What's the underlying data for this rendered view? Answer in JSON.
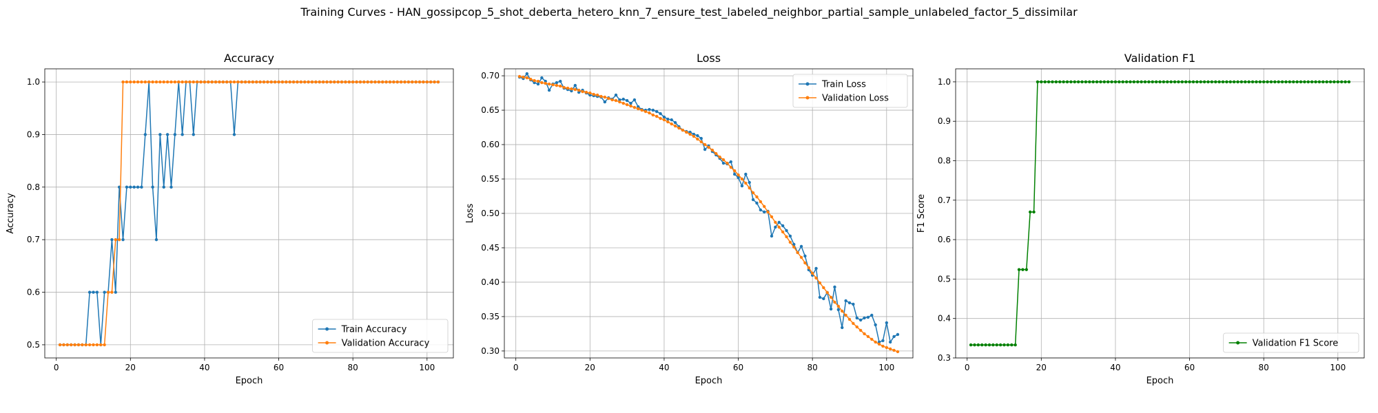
{
  "suptitle": "Training Curves - HAN_gossipcop_5_shot_deberta_hetero_knn_7_ensure_test_labeled_neighbor_partial_sample_unlabeled_factor_5_dissimilar",
  "chart_data": [
    {
      "type": "line",
      "title": "Accuracy",
      "xlabel": "Epoch",
      "ylabel": "Accuracy",
      "xlim": [
        -3.1,
        107.1
      ],
      "ylim": [
        0.475,
        1.025
      ],
      "xticks": [
        0,
        20,
        40,
        60,
        80,
        100
      ],
      "yticks": [
        0.5,
        0.6,
        0.7,
        0.8,
        0.9,
        1.0
      ],
      "ytick_labels": [
        "0.5",
        "0.6",
        "0.7",
        "0.8",
        "0.9",
        "1.0"
      ],
      "grid": true,
      "legend_loc": "lower right",
      "series": [
        {
          "name": "Train Accuracy",
          "color": "#1f77b4",
          "values": [
            0.5,
            0.5,
            0.5,
            0.5,
            0.5,
            0.5,
            0.5,
            0.5,
            0.6,
            0.6,
            0.6,
            0.5,
            0.6,
            0.6,
            0.7,
            0.6,
            0.8,
            0.7,
            0.8,
            0.8,
            0.8,
            0.8,
            0.8,
            0.9,
            1.0,
            0.8,
            0.7,
            0.9,
            0.8,
            0.9,
            0.8,
            0.9,
            1.0,
            0.9,
            1.0,
            1.0,
            0.9,
            1.0,
            1.0,
            1.0,
            1.0,
            1.0,
            1.0,
            1.0,
            1.0,
            1.0,
            1.0,
            0.9,
            1.0,
            1.0,
            1.0,
            1.0,
            1.0,
            1.0,
            1.0,
            1.0,
            1.0,
            1.0,
            1.0,
            1.0,
            1.0,
            1.0,
            1.0,
            1.0,
            1.0,
            1.0,
            1.0,
            1.0,
            1.0,
            1.0,
            1.0,
            1.0,
            1.0,
            1.0,
            1.0,
            1.0,
            1.0,
            1.0,
            1.0,
            1.0,
            1.0,
            1.0,
            1.0,
            1.0,
            1.0,
            1.0,
            1.0,
            1.0,
            1.0,
            1.0,
            1.0,
            1.0,
            1.0,
            1.0,
            1.0,
            1.0,
            1.0,
            1.0,
            1.0,
            1.0,
            1.0,
            1.0,
            1.0
          ]
        },
        {
          "name": "Validation Accuracy",
          "color": "#ff7f0e",
          "values": [
            0.5,
            0.5,
            0.5,
            0.5,
            0.5,
            0.5,
            0.5,
            0.5,
            0.5,
            0.5,
            0.5,
            0.5,
            0.5,
            0.6,
            0.6,
            0.7,
            0.7,
            1.0,
            1.0,
            1.0,
            1.0,
            1.0,
            1.0,
            1.0,
            1.0,
            1.0,
            1.0,
            1.0,
            1.0,
            1.0,
            1.0,
            1.0,
            1.0,
            1.0,
            1.0,
            1.0,
            1.0,
            1.0,
            1.0,
            1.0,
            1.0,
            1.0,
            1.0,
            1.0,
            1.0,
            1.0,
            1.0,
            1.0,
            1.0,
            1.0,
            1.0,
            1.0,
            1.0,
            1.0,
            1.0,
            1.0,
            1.0,
            1.0,
            1.0,
            1.0,
            1.0,
            1.0,
            1.0,
            1.0,
            1.0,
            1.0,
            1.0,
            1.0,
            1.0,
            1.0,
            1.0,
            1.0,
            1.0,
            1.0,
            1.0,
            1.0,
            1.0,
            1.0,
            1.0,
            1.0,
            1.0,
            1.0,
            1.0,
            1.0,
            1.0,
            1.0,
            1.0,
            1.0,
            1.0,
            1.0,
            1.0,
            1.0,
            1.0,
            1.0,
            1.0,
            1.0,
            1.0,
            1.0,
            1.0,
            1.0,
            1.0,
            1.0,
            1.0
          ]
        }
      ]
    },
    {
      "type": "line",
      "title": "Loss",
      "xlabel": "Epoch",
      "ylabel": "Loss",
      "xlim": [
        -3.1,
        107.1
      ],
      "ylim": [
        0.2899,
        0.7101
      ],
      "xticks": [
        0,
        20,
        40,
        60,
        80,
        100
      ],
      "yticks": [
        0.3,
        0.35,
        0.4,
        0.45,
        0.5,
        0.55,
        0.6,
        0.65,
        0.7
      ],
      "ytick_labels": [
        "0.30",
        "0.35",
        "0.40",
        "0.45",
        "0.50",
        "0.55",
        "0.60",
        "0.65",
        "0.70"
      ],
      "grid": true,
      "legend_loc": "upper right",
      "series": [
        {
          "name": "Train Loss",
          "color": "#1f77b4",
          "values": [
            0.698,
            0.696,
            0.703,
            0.694,
            0.69,
            0.688,
            0.697,
            0.692,
            0.679,
            0.688,
            0.69,
            0.692,
            0.682,
            0.68,
            0.678,
            0.686,
            0.676,
            0.679,
            0.675,
            0.672,
            0.671,
            0.67,
            0.669,
            0.662,
            0.668,
            0.666,
            0.672,
            0.665,
            0.666,
            0.664,
            0.66,
            0.665,
            0.655,
            0.651,
            0.65,
            0.651,
            0.65,
            0.648,
            0.645,
            0.64,
            0.637,
            0.636,
            0.632,
            0.626,
            0.621,
            0.619,
            0.618,
            0.615,
            0.613,
            0.609,
            0.593,
            0.598,
            0.59,
            0.585,
            0.58,
            0.573,
            0.572,
            0.575,
            0.557,
            0.552,
            0.54,
            0.557,
            0.545,
            0.52,
            0.515,
            0.505,
            0.502,
            0.503,
            0.467,
            0.48,
            0.487,
            0.482,
            0.475,
            0.467,
            0.455,
            0.443,
            0.452,
            0.438,
            0.418,
            0.41,
            0.42,
            0.378,
            0.376,
            0.385,
            0.361,
            0.393,
            0.36,
            0.334,
            0.373,
            0.37,
            0.368,
            0.348,
            0.345,
            0.348,
            0.349,
            0.352,
            0.338,
            0.313,
            0.315,
            0.341,
            0.313,
            0.321,
            0.324
          ]
        },
        {
          "name": "Validation Loss",
          "color": "#ff7f0e",
          "values": [
            0.699,
            0.698,
            0.697,
            0.695,
            0.693,
            0.692,
            0.69,
            0.689,
            0.688,
            0.687,
            0.686,
            0.685,
            0.683,
            0.682,
            0.681,
            0.68,
            0.679,
            0.677,
            0.676,
            0.675,
            0.673,
            0.672,
            0.67,
            0.669,
            0.667,
            0.665,
            0.664,
            0.662,
            0.66,
            0.658,
            0.656,
            0.654,
            0.652,
            0.65,
            0.648,
            0.646,
            0.643,
            0.641,
            0.638,
            0.636,
            0.633,
            0.63,
            0.627,
            0.624,
            0.621,
            0.618,
            0.615,
            0.612,
            0.608,
            0.604,
            0.6,
            0.596,
            0.592,
            0.587,
            0.582,
            0.578,
            0.573,
            0.567,
            0.562,
            0.556,
            0.55,
            0.544,
            0.537,
            0.53,
            0.524,
            0.517,
            0.51,
            0.502,
            0.495,
            0.487,
            0.48,
            0.473,
            0.466,
            0.458,
            0.451,
            0.443,
            0.436,
            0.428,
            0.421,
            0.413,
            0.406,
            0.399,
            0.392,
            0.385,
            0.378,
            0.371,
            0.365,
            0.358,
            0.352,
            0.346,
            0.34,
            0.335,
            0.33,
            0.325,
            0.321,
            0.317,
            0.313,
            0.31,
            0.307,
            0.305,
            0.303,
            0.301,
            0.299
          ]
        }
      ]
    },
    {
      "type": "line",
      "title": "Validation F1",
      "xlabel": "Epoch",
      "ylabel": "F1 Score",
      "xlim": [
        -3.1,
        107.1
      ],
      "ylim": [
        0.3,
        1.033
      ],
      "xticks": [
        0,
        20,
        40,
        60,
        80,
        100
      ],
      "yticks": [
        0.3,
        0.4,
        0.5,
        0.6,
        0.7,
        0.8,
        0.9,
        1.0
      ],
      "ytick_labels": [
        "0.3",
        "0.4",
        "0.5",
        "0.6",
        "0.7",
        "0.8",
        "0.9",
        "1.0"
      ],
      "grid": true,
      "legend_loc": "lower right",
      "series": [
        {
          "name": "Validation F1 Score",
          "color": "#008000",
          "values": [
            0.333,
            0.333,
            0.333,
            0.333,
            0.333,
            0.333,
            0.333,
            0.333,
            0.333,
            0.333,
            0.333,
            0.333,
            0.333,
            0.524,
            0.524,
            0.524,
            0.67,
            0.67,
            1.0,
            1.0,
            1.0,
            1.0,
            1.0,
            1.0,
            1.0,
            1.0,
            1.0,
            1.0,
            1.0,
            1.0,
            1.0,
            1.0,
            1.0,
            1.0,
            1.0,
            1.0,
            1.0,
            1.0,
            1.0,
            1.0,
            1.0,
            1.0,
            1.0,
            1.0,
            1.0,
            1.0,
            1.0,
            1.0,
            1.0,
            1.0,
            1.0,
            1.0,
            1.0,
            1.0,
            1.0,
            1.0,
            1.0,
            1.0,
            1.0,
            1.0,
            1.0,
            1.0,
            1.0,
            1.0,
            1.0,
            1.0,
            1.0,
            1.0,
            1.0,
            1.0,
            1.0,
            1.0,
            1.0,
            1.0,
            1.0,
            1.0,
            1.0,
            1.0,
            1.0,
            1.0,
            1.0,
            1.0,
            1.0,
            1.0,
            1.0,
            1.0,
            1.0,
            1.0,
            1.0,
            1.0,
            1.0,
            1.0,
            1.0,
            1.0,
            1.0,
            1.0,
            1.0,
            1.0,
            1.0,
            1.0,
            1.0,
            1.0,
            1.0
          ]
        }
      ]
    }
  ]
}
